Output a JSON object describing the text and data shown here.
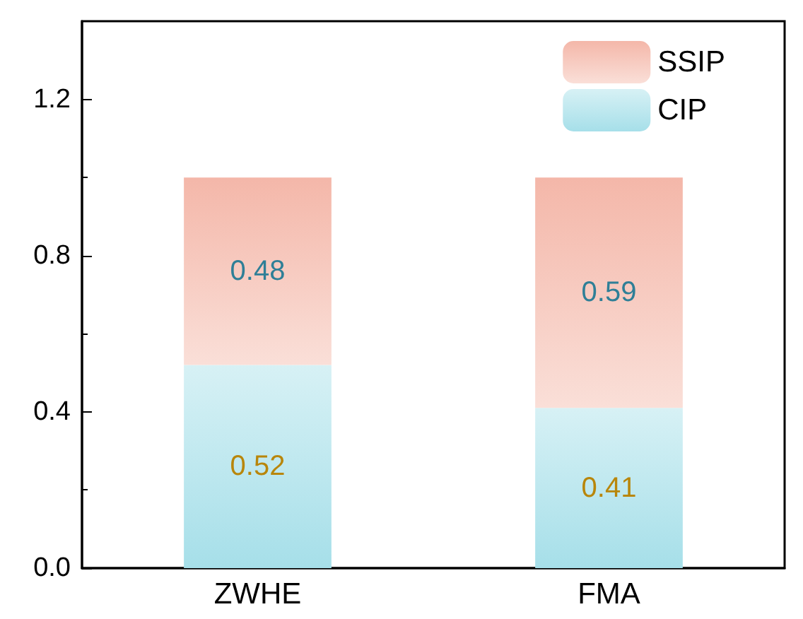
{
  "chart_data": {
    "type": "bar",
    "stacked": true,
    "categories": [
      "ZWHE",
      "FMA"
    ],
    "series": [
      {
        "name": "CIP",
        "color": "#a6dfe9",
        "values": [
          0.52,
          0.41
        ]
      },
      {
        "name": "SSIP",
        "color": "#f4b7a9",
        "values": [
          0.48,
          0.59
        ]
      }
    ],
    "ylim": [
      0,
      1.4
    ],
    "yticks": [
      {
        "value": 0,
        "label": "0.0"
      },
      0.4,
      0.8,
      1.2
    ],
    "grid": false,
    "data_labels": true,
    "legend": "top right"
  }
}
